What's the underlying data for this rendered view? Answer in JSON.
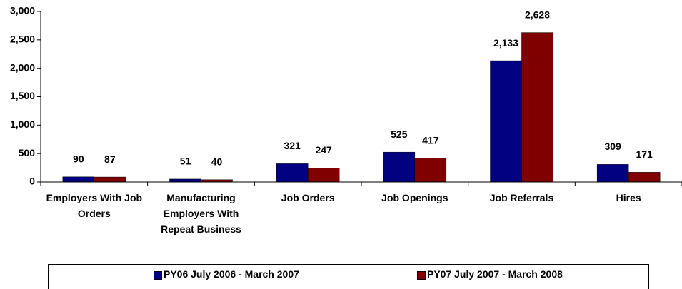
{
  "chart_data": {
    "type": "bar",
    "categories": [
      "Employers With Job Orders",
      "Manufacturing Employers With Repeat Business",
      "Job Orders",
      "Job Openings",
      "Job Referrals",
      "Hires"
    ],
    "series": [
      {
        "name": "PY06 July 2006 - March 2007",
        "color": "#000080",
        "values": [
          90,
          51,
          321,
          525,
          2133,
          309
        ],
        "value_labels": [
          "90",
          "51",
          "321",
          "525",
          "2,133",
          "309"
        ]
      },
      {
        "name": "PY07 July 2007 - March 2008",
        "color": "#800000",
        "values": [
          87,
          40,
          247,
          417,
          2628,
          171
        ],
        "value_labels": [
          "87",
          "40",
          "247",
          "417",
          "2,628",
          "171"
        ]
      }
    ],
    "ylim": [
      0,
      3000
    ],
    "yticks": [
      0,
      500,
      {
        "value": 1000,
        "label": "1,000"
      },
      {
        "value": 1500,
        "label": "1,500"
      },
      {
        "value": 2000,
        "label": "2,000"
      },
      {
        "value": 2500,
        "label": "2,500"
      },
      {
        "value": 3000,
        "label": "3,000"
      }
    ],
    "grid": false,
    "legend": "bottom"
  }
}
